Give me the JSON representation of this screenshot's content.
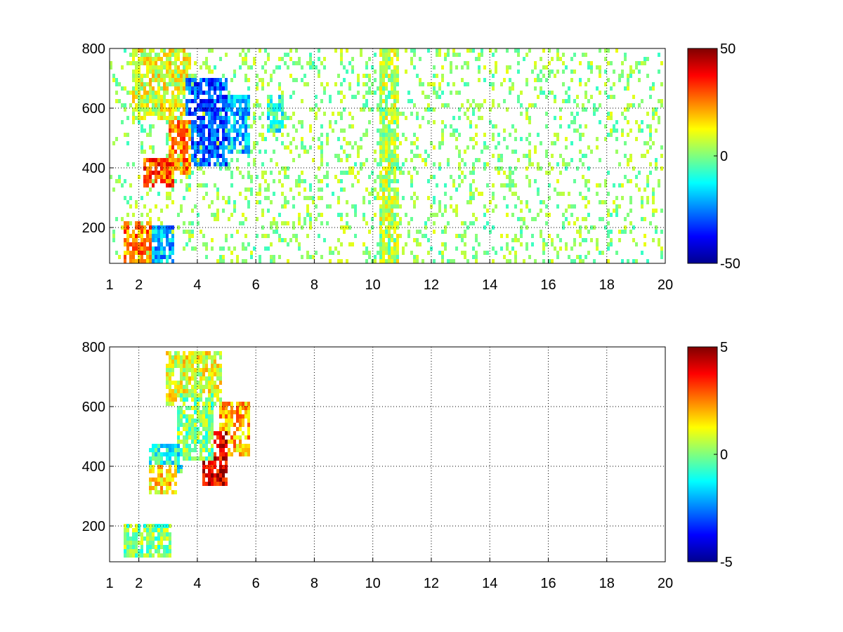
{
  "chart_data": [
    {
      "type": "heatmap",
      "title": "",
      "xlabel": "",
      "ylabel": "",
      "xlim": [
        1,
        20
      ],
      "ylim": [
        80,
        800
      ],
      "xticks": [
        "1",
        "2",
        "4",
        "6",
        "8",
        "10",
        "12",
        "14",
        "16",
        "18",
        "20"
      ],
      "xtick_values": [
        1,
        2,
        4,
        6,
        8,
        10,
        12,
        14,
        16,
        18,
        20
      ],
      "yticks": [
        "200",
        "400",
        "600",
        "800"
      ],
      "ytick_values": [
        200,
        400,
        600,
        800
      ],
      "grid": true,
      "colormap": "jet",
      "colorbar": {
        "min": -50,
        "max": 50,
        "ticks": [
          "50",
          "0",
          "-50"
        ],
        "tick_values": [
          50,
          0,
          -50
        ]
      },
      "regions": [
        {
          "x": [
            1.5,
            2.4
          ],
          "y": [
            80,
            220
          ],
          "value": 25
        },
        {
          "x": [
            2.2,
            3.2
          ],
          "y": [
            80,
            200
          ],
          "value": -20
        },
        {
          "x": [
            2.2,
            3.2
          ],
          "y": [
            330,
            430
          ],
          "value": 30
        },
        {
          "x": [
            3.0,
            3.8
          ],
          "y": [
            380,
            560
          ],
          "value": 25
        },
        {
          "x": [
            3.6,
            5.0
          ],
          "y": [
            400,
            700
          ],
          "value": -30
        },
        {
          "x": [
            4.5,
            5.8
          ],
          "y": [
            450,
            650
          ],
          "value": -20
        },
        {
          "x": [
            1.8,
            3.8
          ],
          "y": [
            560,
            800
          ],
          "value": 10
        },
        {
          "x": [
            6.4,
            7.0
          ],
          "y": [
            520,
            640
          ],
          "value": -10
        },
        {
          "x": [
            10.2,
            10.9
          ],
          "y": [
            80,
            800
          ],
          "value": 5
        }
      ]
    },
    {
      "type": "heatmap",
      "title": "",
      "xlabel": "",
      "ylabel": "",
      "xlim": [
        1,
        20
      ],
      "ylim": [
        80,
        800
      ],
      "xticks": [
        "1",
        "2",
        "4",
        "6",
        "8",
        "10",
        "12",
        "14",
        "16",
        "18",
        "20"
      ],
      "xtick_values": [
        1,
        2,
        4,
        6,
        8,
        10,
        12,
        14,
        16,
        18,
        20
      ],
      "yticks": [
        "200",
        "400",
        "600",
        "800"
      ],
      "ytick_values": [
        200,
        400,
        600,
        800
      ],
      "grid": true,
      "colormap": "jet",
      "colorbar": {
        "min": -5,
        "max": 5,
        "ticks": [
          "5",
          "0",
          "-5"
        ],
        "tick_values": [
          5,
          0,
          -5
        ]
      },
      "regions": [
        {
          "x": [
            1.5,
            3.1
          ],
          "y": [
            90,
            200
          ],
          "value": 0
        },
        {
          "x": [
            2.3,
            3.3
          ],
          "y": [
            300,
            400
          ],
          "value": 1.5
        },
        {
          "x": [
            2.3,
            3.5
          ],
          "y": [
            380,
            480
          ],
          "value": -1
        },
        {
          "x": [
            3.3,
            4.6
          ],
          "y": [
            420,
            650
          ],
          "value": 0
        },
        {
          "x": [
            4.2,
            5.0
          ],
          "y": [
            330,
            520
          ],
          "value": 4
        },
        {
          "x": [
            4.7,
            5.8
          ],
          "y": [
            440,
            620
          ],
          "value": 2
        },
        {
          "x": [
            2.9,
            4.8
          ],
          "y": [
            600,
            790
          ],
          "value": 1
        }
      ]
    }
  ]
}
